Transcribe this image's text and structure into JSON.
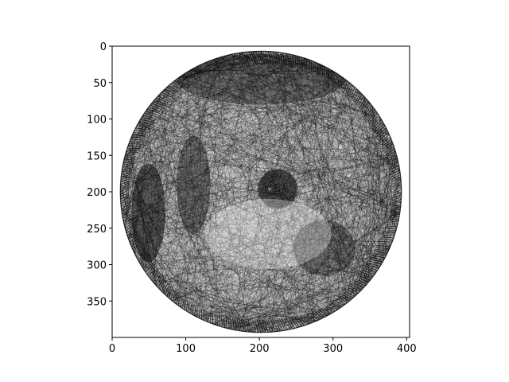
{
  "chart_data": {
    "type": "heatmap",
    "title": "",
    "xlabel": "",
    "ylabel": "",
    "xlim": [
      0,
      404
    ],
    "ylim": [
      400,
      0
    ],
    "y_inverted": true,
    "x_ticks": [
      0,
      100,
      200,
      300,
      400
    ],
    "y_ticks": [
      0,
      50,
      100,
      150,
      200,
      250,
      300,
      350
    ],
    "x_tick_labels": [
      "0",
      "100",
      "200",
      "300",
      "400"
    ],
    "y_tick_labels": [
      "0",
      "50",
      "100",
      "150",
      "200",
      "250",
      "300",
      "350"
    ],
    "grid": false,
    "image": {
      "description_kind": "string-art rendering of a portrait inside a circle",
      "circle_center": [
        202,
        200
      ],
      "circle_radius": 192,
      "colormap": "gray",
      "ink_color": "#000000",
      "paper_color": "#ffffff"
    }
  }
}
